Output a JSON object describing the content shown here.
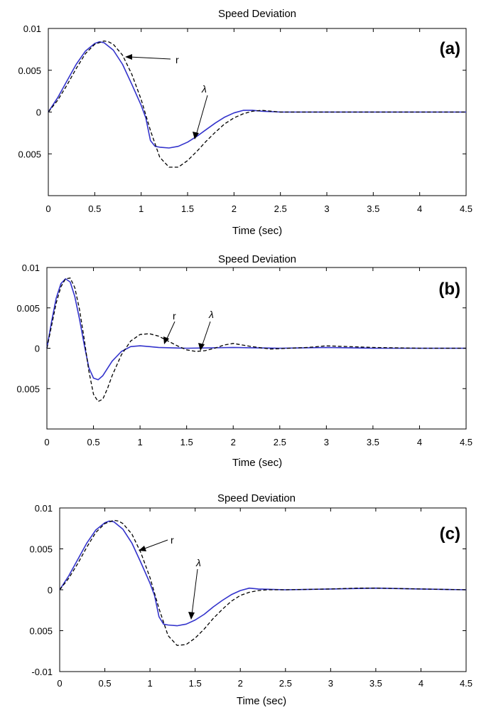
{
  "figure": {
    "panels": [
      {
        "title": "Speed Deviation",
        "xlabel": "Time (sec)",
        "label": "(a)",
        "annotations": [
          "r",
          "λ"
        ]
      },
      {
        "title": "Speed Deviation",
        "xlabel": "Time (sec)",
        "label": "(b)",
        "annotations": [
          "r",
          "λ"
        ]
      },
      {
        "title": "Speed Deviation",
        "xlabel": "Time (sec)",
        "label": "(c)",
        "annotations": [
          "r",
          "λ"
        ]
      }
    ]
  },
  "chart_data": [
    {
      "type": "line",
      "title": "Speed Deviation",
      "xlabel": "Time (sec)",
      "ylabel": "",
      "xlim": [
        0,
        4.5
      ],
      "ylim": [
        -0.01,
        0.01
      ],
      "xticks": [
        0,
        0.5,
        1,
        1.5,
        2,
        2.5,
        3,
        3.5,
        4,
        4.5
      ],
      "xtick_labels": [
        "0",
        "0.5",
        "1",
        "1.5",
        "2",
        "2.5",
        "3",
        "3.5",
        "4",
        "4.5"
      ],
      "yticks": [
        0.01,
        0.005,
        0,
        -0.005
      ],
      "ytick_labels": [
        "0.01",
        "0.005",
        "0",
        "0.005"
      ],
      "grid": false,
      "series": [
        {
          "name": "λ",
          "color": "#3333cc",
          "style": "solid",
          "x": [
            0,
            0.1,
            0.2,
            0.3,
            0.4,
            0.5,
            0.55,
            0.6,
            0.7,
            0.8,
            0.9,
            1.0,
            1.05,
            1.1,
            1.15,
            1.2,
            1.3,
            1.4,
            1.5,
            1.6,
            1.7,
            1.8,
            1.9,
            2.0,
            2.1,
            2.2,
            2.3,
            2.5,
            3.0,
            3.5,
            4.0,
            4.5
          ],
          "y": [
            0,
            0.0017,
            0.0037,
            0.0057,
            0.0073,
            0.0082,
            0.0084,
            0.0083,
            0.0074,
            0.0057,
            0.0033,
            0.0008,
            -0.0007,
            -0.0034,
            -0.0041,
            -0.0042,
            -0.0043,
            -0.0041,
            -0.0036,
            -0.0029,
            -0.0021,
            -0.0013,
            -0.0006,
            -0.0001,
            0.0002,
            0.0002,
            0.0001,
            0,
            0,
            0,
            0,
            0
          ]
        },
        {
          "name": "r",
          "color": "#000000",
          "style": "dashed",
          "x": [
            0,
            0.1,
            0.2,
            0.3,
            0.4,
            0.5,
            0.6,
            0.65,
            0.7,
            0.8,
            0.9,
            1.0,
            1.1,
            1.2,
            1.3,
            1.4,
            1.5,
            1.6,
            1.7,
            1.8,
            1.9,
            2.0,
            2.1,
            2.2,
            2.3,
            2.4,
            2.5,
            3.0,
            3.5,
            4.0,
            4.5
          ],
          "y": [
            0,
            0.0014,
            0.0032,
            0.0052,
            0.007,
            0.0081,
            0.0085,
            0.0084,
            0.0081,
            0.0068,
            0.0045,
            0.0015,
            -0.0022,
            -0.0054,
            -0.0066,
            -0.0066,
            -0.0058,
            -0.0047,
            -0.0035,
            -0.0024,
            -0.0014,
            -0.0007,
            -0.0002,
            0.0001,
            0.0002,
            0.0001,
            0,
            0,
            0,
            0,
            0
          ]
        }
      ],
      "annotations": [
        {
          "text": "r",
          "points_to_series": "r"
        },
        {
          "text": "λ",
          "points_to_series": "λ"
        }
      ],
      "panel_label": "(a)"
    },
    {
      "type": "line",
      "title": "Speed Deviation",
      "xlabel": "Time (sec)",
      "ylabel": "",
      "xlim": [
        0,
        4.5
      ],
      "ylim": [
        -0.01,
        0.01
      ],
      "xticks": [
        0,
        0.5,
        1,
        1.5,
        2,
        2.5,
        3,
        3.5,
        4,
        4.5
      ],
      "xtick_labels": [
        "0",
        "0.5",
        "1",
        "1.5",
        "2",
        "2.5",
        "3",
        "3.5",
        "4",
        "4.5"
      ],
      "yticks": [
        0.01,
        0.005,
        0,
        -0.005
      ],
      "ytick_labels": [
        "0.01",
        "0.005",
        "0",
        "0.005"
      ],
      "grid": false,
      "series": [
        {
          "name": "λ",
          "color": "#3333cc",
          "style": "solid",
          "x": [
            0,
            0.05,
            0.1,
            0.15,
            0.2,
            0.25,
            0.3,
            0.35,
            0.4,
            0.45,
            0.5,
            0.55,
            0.6,
            0.65,
            0.7,
            0.8,
            0.9,
            1.0,
            1.1,
            1.2,
            1.5,
            2.0,
            2.5,
            3.0,
            3.5,
            4.0,
            4.5
          ],
          "y": [
            0,
            0.0033,
            0.0062,
            0.008,
            0.0086,
            0.0082,
            0.0064,
            0.0036,
            0.0005,
            -0.0024,
            -0.0037,
            -0.0039,
            -0.0034,
            -0.0025,
            -0.0016,
            -0.0004,
            0.0002,
            0.0003,
            0.0002,
            0.0001,
            0,
            0.0001,
            0,
            0.0001,
            0,
            0,
            0
          ]
        },
        {
          "name": "r",
          "color": "#000000",
          "style": "dashed",
          "x": [
            0,
            0.05,
            0.1,
            0.15,
            0.2,
            0.25,
            0.3,
            0.35,
            0.4,
            0.45,
            0.5,
            0.55,
            0.6,
            0.65,
            0.7,
            0.8,
            0.9,
            1.0,
            1.1,
            1.2,
            1.3,
            1.4,
            1.5,
            1.6,
            1.7,
            1.8,
            1.9,
            2.0,
            2.1,
            2.2,
            2.4,
            2.6,
            2.8,
            3.0,
            3.5,
            4.0,
            4.5
          ],
          "y": [
            0,
            0.0028,
            0.0056,
            0.0076,
            0.0086,
            0.0087,
            0.0075,
            0.0048,
            0.0012,
            -0.0028,
            -0.0057,
            -0.0066,
            -0.0063,
            -0.005,
            -0.0034,
            -0.0008,
            0.0009,
            0.0017,
            0.0018,
            0.0015,
            0.0009,
            0.0003,
            -0.0002,
            -0.0004,
            -0.0003,
            0,
            0.0004,
            0.0006,
            0.0004,
            0.0002,
            -0.0001,
            0,
            0.0001,
            0.0003,
            0.0001,
            0,
            0
          ]
        }
      ],
      "annotations": [
        {
          "text": "r",
          "points_to_series": "r"
        },
        {
          "text": "λ",
          "points_to_series": "λ"
        }
      ],
      "panel_label": "(b)"
    },
    {
      "type": "line",
      "title": "Speed Deviation",
      "xlabel": "Time (sec)",
      "ylabel": "",
      "xlim": [
        0,
        4.5
      ],
      "ylim": [
        -0.01,
        0.01
      ],
      "xticks": [
        0,
        0.5,
        1,
        1.5,
        2,
        2.5,
        3,
        3.5,
        4,
        4.5
      ],
      "xtick_labels": [
        "0",
        "0.5",
        "1",
        "1.5",
        "2",
        "2.5",
        "3",
        "3.5",
        "4",
        "4.5"
      ],
      "yticks": [
        0.01,
        0.005,
        0,
        -0.005,
        -0.01
      ],
      "ytick_labels": [
        "0.01",
        "0.005",
        "0",
        "0.005",
        "-0.01"
      ],
      "grid": false,
      "series": [
        {
          "name": "λ",
          "color": "#3333cc",
          "style": "solid",
          "x": [
            0,
            0.1,
            0.2,
            0.3,
            0.4,
            0.5,
            0.55,
            0.6,
            0.7,
            0.8,
            0.9,
            1.0,
            1.05,
            1.1,
            1.15,
            1.2,
            1.3,
            1.4,
            1.5,
            1.6,
            1.7,
            1.8,
            1.9,
            2.0,
            2.1,
            2.2,
            2.5,
            3.0,
            3.5,
            4.0,
            4.5
          ],
          "y": [
            0,
            0.0017,
            0.0037,
            0.0057,
            0.0073,
            0.0082,
            0.0084,
            0.0083,
            0.0074,
            0.0057,
            0.0033,
            0.0008,
            -0.0007,
            -0.0033,
            -0.0042,
            -0.0043,
            -0.0044,
            -0.0042,
            -0.0037,
            -0.003,
            -0.0021,
            -0.0013,
            -0.0006,
            -0.0001,
            0.0002,
            0.0001,
            0,
            0.0001,
            0.0002,
            0.0001,
            0
          ]
        },
        {
          "name": "r",
          "color": "#000000",
          "style": "dashed",
          "x": [
            0,
            0.1,
            0.2,
            0.3,
            0.4,
            0.5,
            0.6,
            0.65,
            0.7,
            0.8,
            0.9,
            1.0,
            1.1,
            1.2,
            1.3,
            1.4,
            1.5,
            1.6,
            1.7,
            1.8,
            1.9,
            2.0,
            2.1,
            2.2,
            2.3,
            2.5,
            3.0,
            3.3,
            3.5,
            4.0,
            4.5
          ],
          "y": [
            0,
            0.0014,
            0.0032,
            0.0052,
            0.007,
            0.0081,
            0.0085,
            0.0084,
            0.0081,
            0.0068,
            0.0045,
            0.0015,
            -0.0023,
            -0.0056,
            -0.0068,
            -0.0067,
            -0.0059,
            -0.0048,
            -0.0035,
            -0.0024,
            -0.0014,
            -0.0007,
            -0.0003,
            -0.0001,
            0,
            0,
            0.0001,
            0.0002,
            0.0002,
            0.0001,
            0
          ]
        }
      ],
      "annotations": [
        {
          "text": "r",
          "points_to_series": "r"
        },
        {
          "text": "λ",
          "points_to_series": "λ"
        }
      ],
      "panel_label": "(c)"
    }
  ]
}
